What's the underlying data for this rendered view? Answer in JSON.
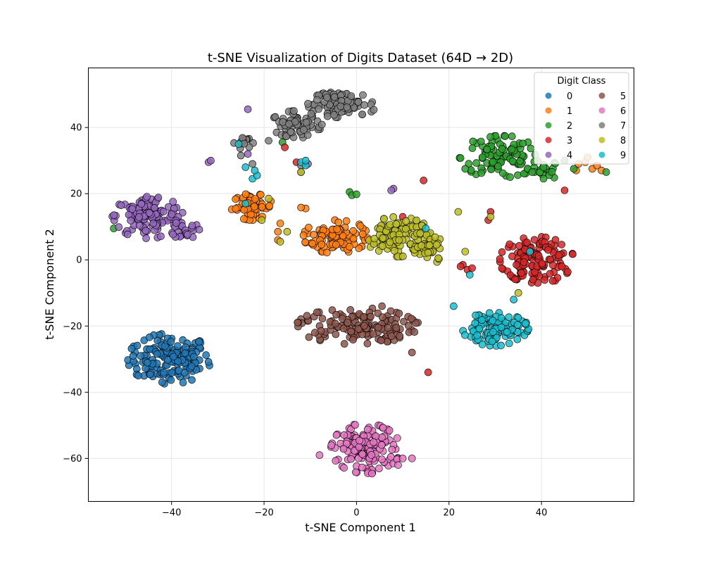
{
  "chart_data": {
    "type": "scatter",
    "title": "t-SNE Visualization of Digits Dataset (64D → 2D)",
    "xlabel": "t-SNE Component 1",
    "ylabel": "t-SNE Component 2",
    "xlim": [
      -58,
      60
    ],
    "ylim": [
      -73,
      58
    ],
    "xticks": [
      -40,
      -20,
      0,
      20,
      40
    ],
    "yticks": [
      -60,
      -40,
      -20,
      0,
      20,
      40
    ],
    "grid": true,
    "legend": {
      "title": "Digit Class",
      "placement": "top-right",
      "columns": 2
    },
    "series": [
      {
        "name": "0",
        "color": "#1f77b4",
        "clusters": [
          {
            "cx": -40.5,
            "cy": -30,
            "rx": 9,
            "ry": 7.5,
            "n": 150
          }
        ],
        "outliers": []
      },
      {
        "name": "1",
        "color": "#ff7f0e",
        "clusters": [
          {
            "cx": -4.5,
            "cy": 7,
            "rx": 7,
            "ry": 5,
            "n": 100
          },
          {
            "cx": -22.5,
            "cy": 16,
            "rx": 4.5,
            "ry": 4,
            "n": 55
          }
        ],
        "outliers": [
          [
            -11,
            15.5
          ],
          [
            -12,
            15.8
          ],
          [
            -17,
            8.5
          ],
          [
            -17,
            6
          ],
          [
            -16.5,
            11
          ],
          [
            48,
            29
          ],
          [
            49.5,
            29.5
          ],
          [
            51,
            27.5
          ],
          [
            52,
            28.5
          ],
          [
            50,
            31
          ],
          [
            47.5,
            27
          ],
          [
            53,
            27
          ]
        ]
      },
      {
        "name": "2",
        "color": "#2ca02c",
        "clusters": [
          {
            "cx": 31,
            "cy": 31,
            "rx": 8.5,
            "ry": 6.5,
            "n": 100
          },
          {
            "cx": 40,
            "cy": 27,
            "rx": 4,
            "ry": 3,
            "n": 25
          }
        ],
        "outliers": [
          [
            -16,
            35.5
          ],
          [
            -1.5,
            20.5
          ],
          [
            -1,
            19.5
          ],
          [
            0,
            19.8
          ],
          [
            -52.5,
            9.5
          ],
          [
            45,
            30
          ],
          [
            47,
            27.5
          ],
          [
            54,
            26.5
          ],
          [
            23.5,
            27.5
          ]
        ]
      },
      {
        "name": "3",
        "color": "#d62728",
        "clusters": [
          {
            "cx": 39,
            "cy": 0,
            "rx": 8,
            "ry": 7,
            "n": 130
          }
        ],
        "outliers": [
          [
            14.5,
            24
          ],
          [
            45,
            21
          ],
          [
            29,
            14.5
          ],
          [
            28.5,
            12
          ],
          [
            23,
            -1.5
          ],
          [
            24,
            -3
          ],
          [
            25,
            -2.5
          ],
          [
            22.5,
            -2
          ],
          [
            15.5,
            -34
          ],
          [
            -15.5,
            34
          ],
          [
            -13,
            29.5
          ],
          [
            10,
            13
          ]
        ]
      },
      {
        "name": "4",
        "color": "#9467bd",
        "clusters": [
          {
            "cx": -45,
            "cy": 13,
            "rx": 7.5,
            "ry": 6.5,
            "n": 130
          },
          {
            "cx": -37,
            "cy": 9,
            "rx": 3,
            "ry": 3,
            "n": 20
          }
        ],
        "outliers": [
          [
            -23.5,
            45.5
          ],
          [
            -32,
            29.5
          ],
          [
            -31.5,
            30
          ],
          [
            -23.5,
            32
          ],
          [
            -10.5,
            29
          ],
          [
            8,
            21.5
          ],
          [
            7.5,
            21
          ]
        ]
      },
      {
        "name": "5",
        "color": "#8c564b",
        "clusters": [
          {
            "cx": 0,
            "cy": -20,
            "rx": 13,
            "ry": 5.5,
            "n": 140
          }
        ],
        "outliers": [
          [
            5.5,
            -14
          ],
          [
            -9,
            -22
          ],
          [
            12,
            -28
          ]
        ]
      },
      {
        "name": "6",
        "color": "#e377c2",
        "clusters": [
          {
            "cx": 2,
            "cy": -57,
            "rx": 7.5,
            "ry": 7.5,
            "n": 150
          }
        ],
        "outliers": [
          [
            9,
            -62
          ],
          [
            10,
            -60
          ],
          [
            12,
            -60
          ],
          [
            -8,
            -59
          ]
        ]
      },
      {
        "name": "7",
        "color": "#7f7f7f",
        "clusters": [
          {
            "cx": -3,
            "cy": 47,
            "rx": 7.5,
            "ry": 4,
            "n": 80
          },
          {
            "cx": -13,
            "cy": 41,
            "rx": 5.5,
            "ry": 4,
            "n": 60
          },
          {
            "cx": -24,
            "cy": 35.5,
            "rx": 2.5,
            "ry": 2,
            "n": 15
          }
        ],
        "outliers": [
          [
            -22.5,
            29
          ],
          [
            -19,
            36
          ],
          [
            -12,
            28.5
          ],
          [
            -12,
            26.5
          ],
          [
            -25,
            31.5
          ]
        ]
      },
      {
        "name": "8",
        "color": "#bcbd22",
        "clusters": [
          {
            "cx": 9,
            "cy": 7,
            "rx": 7,
            "ry": 6,
            "n": 110
          },
          {
            "cx": 16,
            "cy": 3,
            "rx": 3.5,
            "ry": 4,
            "n": 30
          }
        ],
        "outliers": [
          [
            -19,
            18.5
          ],
          [
            -15,
            8.5
          ],
          [
            -20.5,
            12
          ],
          [
            -12,
            26.5
          ],
          [
            23.5,
            2.5
          ],
          [
            22,
            14.5
          ],
          [
            29,
            13
          ],
          [
            35,
            -10
          ],
          [
            -16.5,
            5.5
          ]
        ]
      },
      {
        "name": "9",
        "color": "#17becf",
        "clusters": [
          {
            "cx": 30,
            "cy": -21,
            "rx": 7,
            "ry": 5,
            "n": 120
          }
        ],
        "outliers": [
          [
            -22.5,
            24.5
          ],
          [
            -21.5,
            25.5
          ],
          [
            -22,
            27
          ],
          [
            -24,
            28
          ],
          [
            -12,
            29.5
          ],
          [
            -11,
            28.5
          ],
          [
            -25.5,
            35
          ],
          [
            -24,
            17
          ],
          [
            37.5,
            2.5
          ],
          [
            34,
            -12
          ],
          [
            15,
            9.5
          ],
          [
            -11,
            30
          ],
          [
            24.5,
            -4.5
          ],
          [
            21,
            -14
          ]
        ]
      }
    ]
  }
}
